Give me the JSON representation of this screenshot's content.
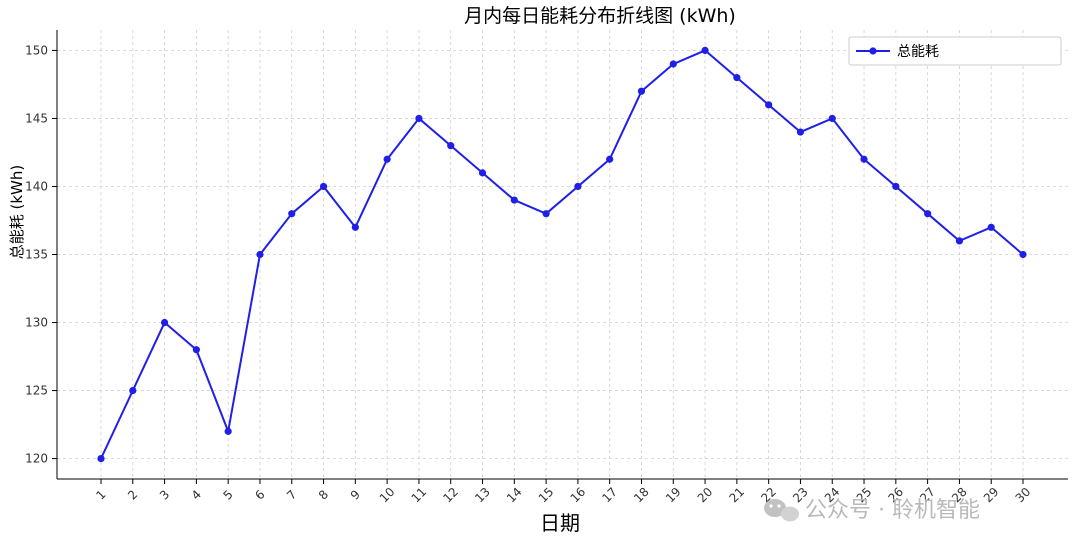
{
  "chart_data": {
    "type": "line",
    "title": "月内每日能耗分布折线图 (kWh)",
    "xlabel": "日期",
    "ylabel": "总能耗 (kWh)",
    "x": [
      1,
      2,
      3,
      4,
      5,
      6,
      7,
      8,
      9,
      10,
      11,
      12,
      13,
      14,
      15,
      16,
      17,
      18,
      19,
      20,
      21,
      22,
      23,
      24,
      25,
      26,
      27,
      28,
      29,
      30
    ],
    "series": [
      {
        "name": "总能耗",
        "color": "#1f1fe8",
        "values": [
          120,
          125,
          130,
          128,
          122,
          135,
          138,
          140,
          137,
          142,
          145,
          143,
          141,
          139,
          138,
          140,
          142,
          147,
          149,
          150,
          148,
          146,
          144,
          145,
          142,
          140,
          138,
          136,
          137,
          135
        ]
      }
    ],
    "ylim": [
      118.5,
      151.5
    ],
    "yticks": [
      120,
      125,
      130,
      135,
      140,
      145,
      150
    ],
    "grid": true,
    "legend_position": "top-right"
  },
  "watermark": {
    "icon": "wechat-icon",
    "text": "公众号 · 聆机智能"
  }
}
